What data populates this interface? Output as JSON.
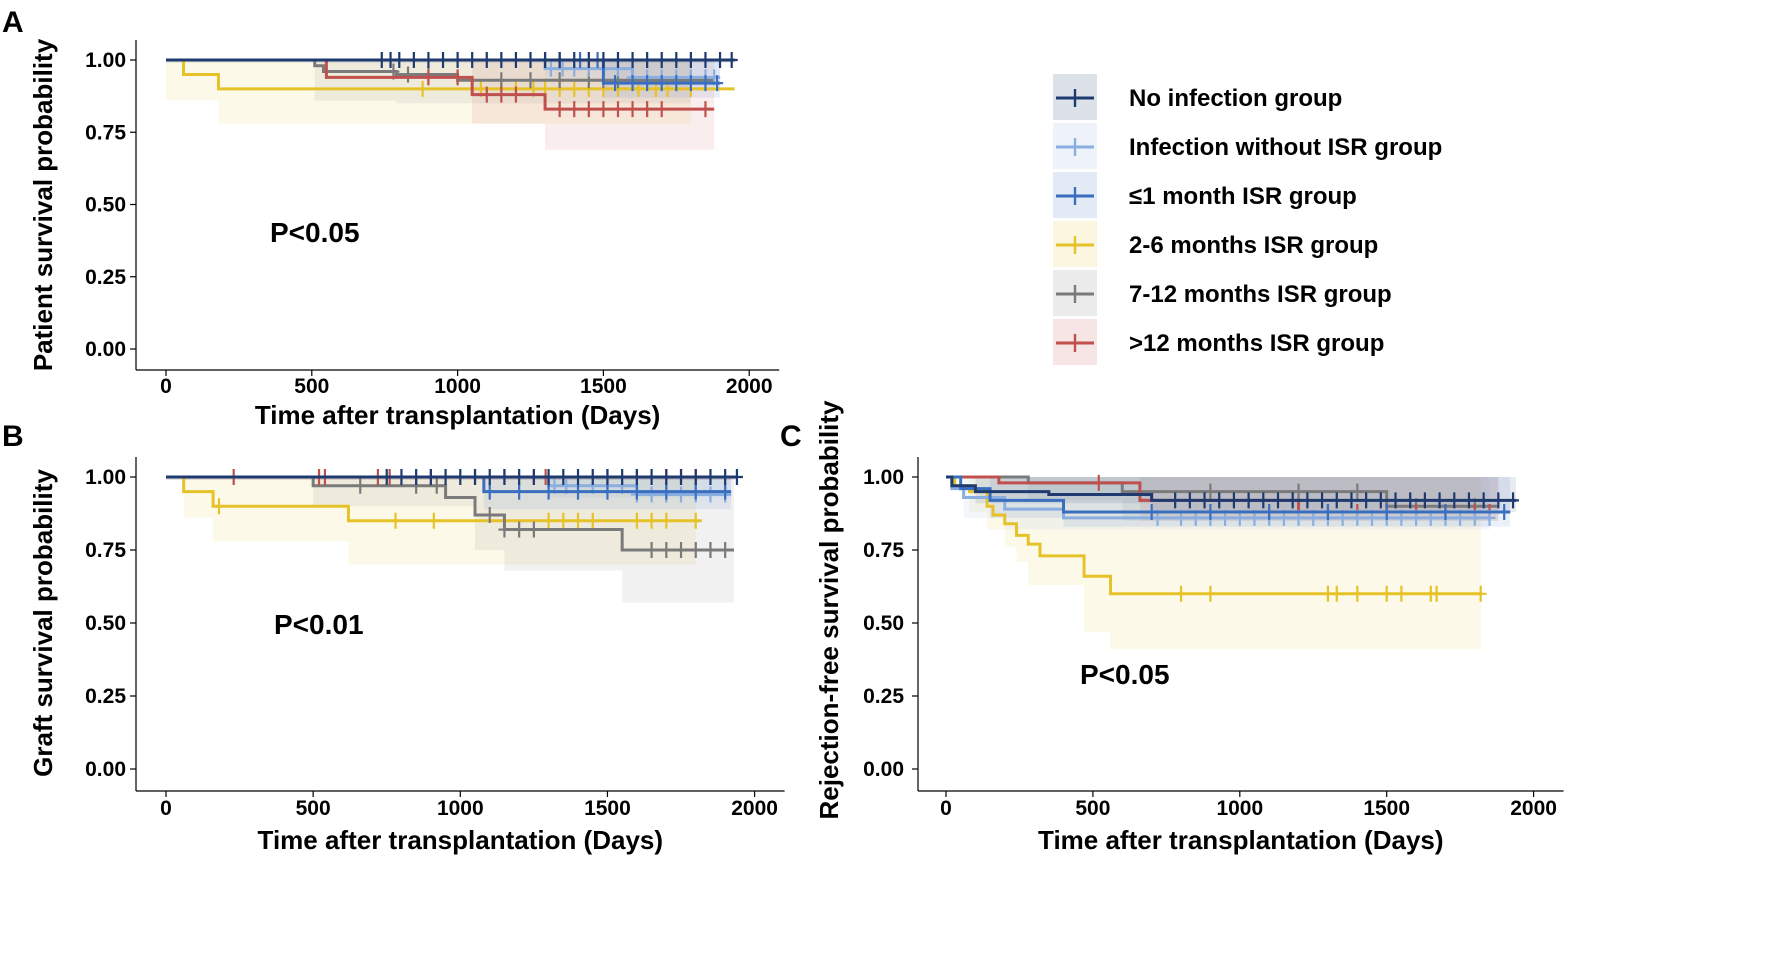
{
  "colors": {
    "no_infection": "#1e3a6e",
    "infection_without_isr": "#8aaee0",
    "isr_le1": "#3a6fc0",
    "isr_2_6": "#e6c229",
    "isr_7_12": "#7a7a7a",
    "isr_gt12": "#c0504d"
  },
  "legend": {
    "items": [
      {
        "label": "No infection group",
        "series": "no_infection"
      },
      {
        "label": "Infection without ISR group",
        "series": "infection_without_isr"
      },
      {
        "label": "≤1 month ISR group",
        "series": "isr_le1"
      },
      {
        "label": "2-6 months ISR group",
        "series": "isr_2_6"
      },
      {
        "label": "7-12 months ISR group",
        "series": "isr_7_12"
      },
      {
        "label": ">12 months ISR group",
        "series": "isr_gt12"
      }
    ]
  },
  "chart_data": [
    {
      "panel": "A",
      "type": "line",
      "xlabel": "Time after transplantation (Days)",
      "ylabel": "Patient survival probability",
      "annotation": "P<0.05",
      "xlim": [
        0,
        2000
      ],
      "ylim": [
        0,
        1
      ],
      "xticks": [
        "0",
        "500",
        "1000",
        "1500",
        "2000"
      ],
      "yticks": [
        "0.00",
        "0.25",
        "0.50",
        "0.75",
        "1.00"
      ],
      "series": [
        {
          "key": "isr_2_6",
          "steps": [
            [
              0,
              1.0
            ],
            [
              60,
              0.95
            ],
            [
              180,
              0.9
            ],
            [
              1950,
              0.9
            ]
          ],
          "end": 1880,
          "ci_low": [
            [
              0,
              0.86
            ],
            [
              180,
              0.78
            ],
            [
              1070,
              0.78
            ]
          ],
          "ci_high_end": 1800,
          "censors": [
            880,
            1080,
            1150,
            1200,
            1260,
            1300,
            1350,
            1400,
            1450,
            1500,
            1550,
            1620,
            1680,
            1720,
            1800
          ]
        },
        {
          "key": "isr_7_12",
          "steps": [
            [
              0,
              1.0
            ],
            [
              510,
              0.98
            ],
            [
              540,
              0.96
            ],
            [
              790,
              0.95
            ],
            [
              1000,
              0.93
            ],
            [
              1880,
              0.93
            ]
          ],
          "end": 1880,
          "ci_low": [
            [
              510,
              0.86
            ],
            [
              790,
              0.85
            ]
          ],
          "ci_high_end": 1800,
          "censors": [
            780,
            830,
            900,
            1150,
            1250,
            1350,
            1450,
            1500,
            1550
          ]
        },
        {
          "key": "isr_gt12",
          "steps": [
            [
              0,
              1.0
            ],
            [
              550,
              0.94
            ],
            [
              1050,
              0.88
            ],
            [
              1300,
              0.83
            ],
            [
              1880,
              0.83
            ]
          ],
          "end": 1880,
          "ci_low": [
            [
              1050,
              0.78
            ],
            [
              1300,
              0.69
            ]
          ],
          "ci_high_end": 1880,
          "censors": [
            900,
            1000,
            1100,
            1150,
            1200,
            1350,
            1400,
            1450,
            1500,
            1550,
            1600,
            1650,
            1700,
            1850
          ]
        },
        {
          "key": "infection_without_isr",
          "steps": [
            [
              0,
              1.0
            ],
            [
              1300,
              0.97
            ],
            [
              1600,
              0.94
            ],
            [
              1900,
              0.94
            ]
          ],
          "end": 1900,
          "ci_low": [
            [
              1300,
              0.93
            ],
            [
              1600,
              0.9
            ]
          ],
          "ci_high_end": 1900,
          "censors": [
            1320,
            1360,
            1400,
            1450,
            1500,
            1550,
            1600,
            1650,
            1700,
            1750,
            1800,
            1850,
            1880
          ]
        },
        {
          "key": "isr_le1",
          "steps": [
            [
              0,
              1.0
            ],
            [
              1500,
              0.92
            ],
            [
              1900,
              0.92
            ]
          ],
          "end": 1900,
          "ci_low": [
            [
              1500,
              0.87
            ]
          ],
          "ci_high_end": 1900,
          "censors": [
            1300,
            1350,
            1420,
            1480,
            1540,
            1600,
            1650,
            1700,
            1750,
            1800,
            1850,
            1890
          ]
        },
        {
          "key": "no_infection",
          "steps": [
            [
              0,
              1.0
            ],
            [
              1950,
              1.0
            ]
          ],
          "end": 1950,
          "ci_low": [
            [
              0,
              0.99
            ]
          ],
          "ci_high_end": 1950,
          "censors": [
            740,
            770,
            800,
            850,
            900,
            950,
            1000,
            1050,
            1100,
            1150,
            1200,
            1250,
            1300,
            1350,
            1400,
            1450,
            1500,
            1550,
            1600,
            1650,
            1700,
            1750,
            1800,
            1850,
            1900,
            1940
          ]
        }
      ]
    },
    {
      "panel": "B",
      "type": "line",
      "xlabel": "Time after transplantation (Days)",
      "ylabel": "Graft survival probability",
      "annotation": "P<0.01",
      "xlim": [
        0,
        2000
      ],
      "ylim": [
        0,
        1
      ],
      "xticks": [
        "0",
        "500",
        "1000",
        "1500",
        "2000"
      ],
      "yticks": [
        "0.00",
        "0.25",
        "0.50",
        "0.75",
        "1.00"
      ],
      "series": [
        {
          "key": "isr_2_6",
          "steps": [
            [
              0,
              1.0
            ],
            [
              60,
              0.95
            ],
            [
              160,
              0.9
            ],
            [
              620,
              0.85
            ],
            [
              1820,
              0.85
            ]
          ],
          "end": 1820,
          "ci_low": [
            [
              60,
              0.86
            ],
            [
              160,
              0.78
            ],
            [
              620,
              0.7
            ]
          ],
          "ci_high_end": 1800,
          "censors": [
            180,
            780,
            910,
            1300,
            1350,
            1400,
            1450,
            1600,
            1650,
            1700,
            1800
          ]
        },
        {
          "key": "isr_7_12",
          "steps": [
            [
              0,
              1.0
            ],
            [
              500,
              0.97
            ],
            [
              950,
              0.93
            ],
            [
              1050,
              0.87
            ],
            [
              1150,
              0.82
            ],
            [
              1550,
              0.75
            ],
            [
              1930,
              0.75
            ]
          ],
          "end": 1930,
          "ci_low": [
            [
              500,
              0.9
            ],
            [
              1050,
              0.75
            ],
            [
              1150,
              0.68
            ],
            [
              1550,
              0.57
            ]
          ],
          "ci_high_end": 1930,
          "censors": [
            660,
            850,
            920,
            1100,
            1150,
            1200,
            1250,
            1650,
            1700,
            1750,
            1800,
            1850,
            1900
          ]
        },
        {
          "key": "isr_gt12",
          "steps": [
            [
              0,
              1.0
            ],
            [
              1920,
              1.0
            ]
          ],
          "end": 1920,
          "ci_low": [
            [
              0,
              0.99
            ]
          ],
          "ci_high_end": 1920,
          "censors": [
            230,
            520,
            540,
            720,
            760,
            900,
            1050,
            1150,
            1250,
            1290,
            1500,
            1600,
            1700,
            1750,
            1800
          ]
        },
        {
          "key": "infection_without_isr",
          "steps": [
            [
              0,
              1.0
            ],
            [
              1300,
              0.97
            ],
            [
              1600,
              0.94
            ],
            [
              1920,
              0.94
            ]
          ],
          "end": 1920,
          "ci_low": [
            [
              1300,
              0.93
            ]
          ],
          "ci_high_end": 1920,
          "censors": [
            1320,
            1360,
            1400,
            1450,
            1500,
            1550,
            1600,
            1650,
            1700,
            1750,
            1800,
            1850,
            1900
          ]
        },
        {
          "key": "isr_le1",
          "steps": [
            [
              0,
              1.0
            ],
            [
              1080,
              0.95
            ],
            [
              1920,
              0.95
            ]
          ],
          "end": 1920,
          "ci_low": [
            [
              1080,
              0.89
            ]
          ],
          "ci_high_end": 1920,
          "censors": [
            1100,
            1200,
            1300,
            1400,
            1500,
            1600,
            1700,
            1800,
            1900
          ]
        },
        {
          "key": "no_infection",
          "steps": [
            [
              0,
              1.0
            ],
            [
              1940,
              1.0
            ]
          ],
          "end": 1940,
          "ci_low": [
            [
              0,
              0.99
            ]
          ],
          "ci_high_end": 1940,
          "censors": [
            750,
            800,
            850,
            900,
            950,
            1000,
            1050,
            1100,
            1150,
            1200,
            1250,
            1300,
            1350,
            1400,
            1450,
            1500,
            1550,
            1600,
            1650,
            1700,
            1750,
            1800,
            1850,
            1900,
            1940
          ]
        }
      ]
    },
    {
      "panel": "C",
      "type": "line",
      "xlabel": "Time after transplantation (Days)",
      "ylabel": "Rejection-free survival probability",
      "annotation": "P<0.05",
      "xlim": [
        0,
        2000
      ],
      "ylim": [
        0,
        1
      ],
      "xticks": [
        "0",
        "500",
        "1000",
        "1500",
        "2000"
      ],
      "yticks": [
        "0.00",
        "0.25",
        "0.50",
        "0.75",
        "1.00"
      ],
      "series": [
        {
          "key": "isr_2_6",
          "steps": [
            [
              0,
              1.0
            ],
            [
              30,
              0.97
            ],
            [
              80,
              0.95
            ],
            [
              140,
              0.9
            ],
            [
              160,
              0.87
            ],
            [
              200,
              0.84
            ],
            [
              240,
              0.8
            ],
            [
              280,
              0.77
            ],
            [
              320,
              0.73
            ],
            [
              470,
              0.66
            ],
            [
              560,
              0.6
            ],
            [
              1820,
              0.6
            ]
          ],
          "end": 1820,
          "ci_low": [
            [
              80,
              0.88
            ],
            [
              140,
              0.82
            ],
            [
              200,
              0.76
            ],
            [
              240,
              0.71
            ],
            [
              280,
              0.63
            ],
            [
              470,
              0.47
            ],
            [
              560,
              0.41
            ]
          ],
          "ci_high_end": 1820,
          "censors": [
            800,
            900,
            1300,
            1330,
            1400,
            1500,
            1550,
            1650,
            1670,
            1820
          ]
        },
        {
          "key": "isr_7_12",
          "steps": [
            [
              0,
              1.0
            ],
            [
              280,
              0.98
            ],
            [
              600,
              0.95
            ],
            [
              1500,
              0.9
            ],
            [
              1880,
              0.9
            ]
          ],
          "end": 1880,
          "ci_low": [
            [
              280,
              0.92
            ],
            [
              600,
              0.85
            ]
          ],
          "ci_high_end": 1880,
          "censors": [
            900,
            1200,
            1400,
            1600,
            1800
          ]
        },
        {
          "key": "isr_gt12",
          "steps": [
            [
              0,
              1.0
            ],
            [
              180,
              0.98
            ],
            [
              660,
              0.92
            ],
            [
              1200,
              0.88
            ],
            [
              1880,
              0.88
            ]
          ],
          "end": 1880,
          "ci_low": [
            [
              660,
              0.85
            ]
          ],
          "ci_high_end": 1880,
          "censors": [
            520,
            1300,
            1400,
            1500,
            1600,
            1700,
            1800,
            1850
          ]
        },
        {
          "key": "infection_without_isr",
          "steps": [
            [
              0,
              1.0
            ],
            [
              20,
              0.96
            ],
            [
              60,
              0.93
            ],
            [
              200,
              0.89
            ],
            [
              400,
              0.86
            ],
            [
              1850,
              0.86
            ]
          ],
          "end": 1850,
          "ci_low": [
            [
              60,
              0.86
            ],
            [
              200,
              0.82
            ]
          ],
          "ci_high_end": 1850,
          "censors": [
            720,
            800,
            850,
            900,
            950,
            1000,
            1050,
            1100,
            1150,
            1200,
            1250,
            1300,
            1350,
            1400,
            1450,
            1500,
            1550,
            1600,
            1650,
            1700,
            1750,
            1800,
            1850
          ]
        },
        {
          "key": "isr_le1",
          "steps": [
            [
              0,
              1.0
            ],
            [
              50,
              0.96
            ],
            [
              150,
              0.92
            ],
            [
              400,
              0.88
            ],
            [
              1920,
              0.88
            ]
          ],
          "end": 1920,
          "ci_low": [
            [
              150,
              0.86
            ],
            [
              400,
              0.83
            ]
          ],
          "ci_high_end": 1920,
          "censors": [
            700,
            900,
            1100,
            1300,
            1500,
            1700,
            1900
          ]
        },
        {
          "key": "no_infection",
          "steps": [
            [
              0,
              1.0
            ],
            [
              20,
              0.97
            ],
            [
              100,
              0.95
            ],
            [
              350,
              0.94
            ],
            [
              700,
              0.92
            ],
            [
              1940,
              0.92
            ]
          ],
          "end": 1940,
          "ci_low": [
            [
              100,
              0.91
            ],
            [
              700,
              0.88
            ]
          ],
          "ci_high_end": 1940,
          "censors": [
            780,
            830,
            880,
            930,
            980,
            1030,
            1080,
            1130,
            1180,
            1230,
            1280,
            1330,
            1380,
            1430,
            1480,
            1530,
            1580,
            1630,
            1680,
            1730,
            1780,
            1830,
            1880,
            1930
          ]
        }
      ]
    }
  ]
}
